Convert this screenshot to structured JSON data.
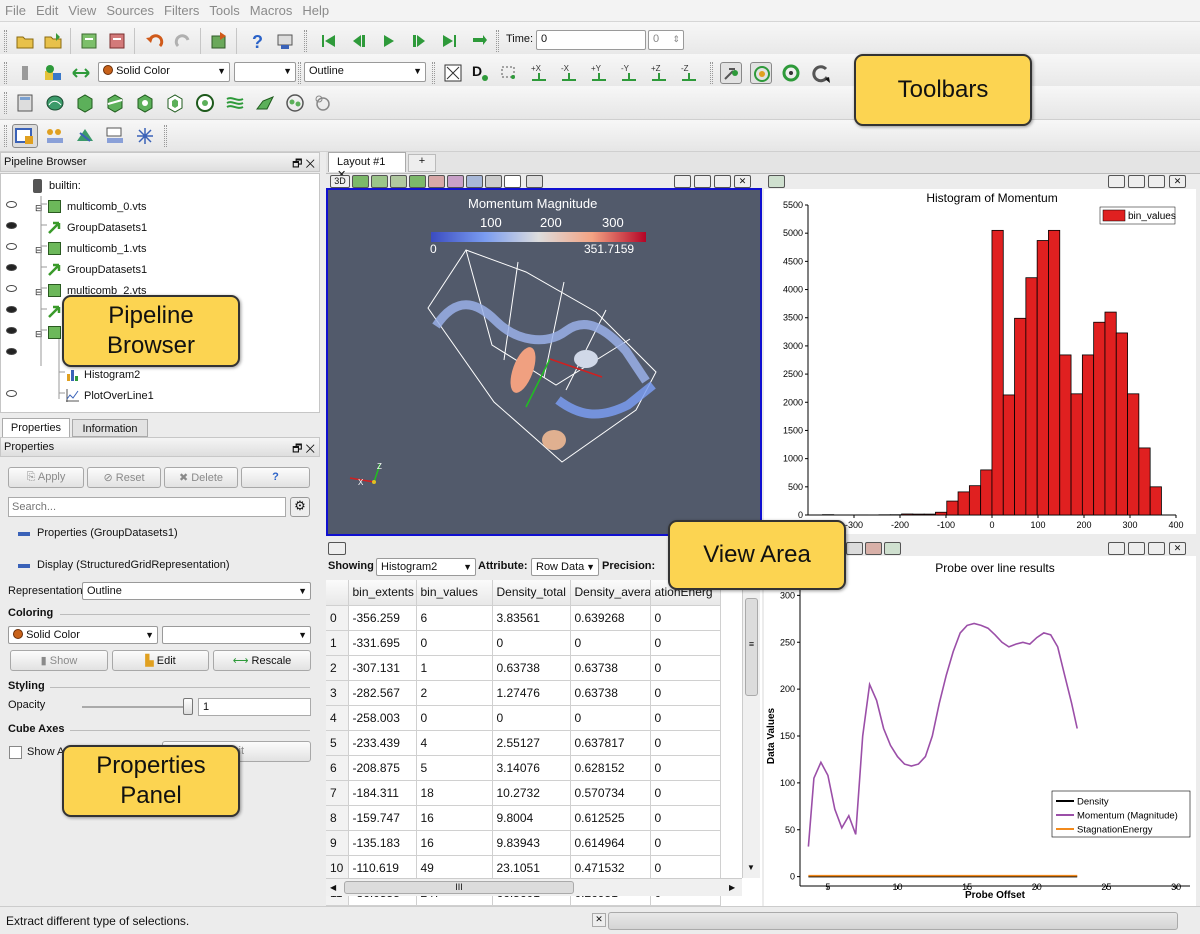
{
  "menu": [
    "File",
    "Edit",
    "View",
    "Sources",
    "Filters",
    "Tools",
    "Macros",
    "Help"
  ],
  "toolbar": {
    "time_label": "Time:",
    "time_value": "0",
    "time_index": "0",
    "color_mode": "Solid Color",
    "color_component": "",
    "representation": "Outline"
  },
  "callouts": {
    "toolbars": "Toolbars",
    "pipeline_l1": "Pipeline",
    "pipeline_l2": "Browser",
    "view_area": "View Area",
    "props_l1": "Properties",
    "props_l2": "Panel"
  },
  "pipeline": {
    "title": "Pipeline Browser",
    "items": [
      {
        "label": "builtin:"
      },
      {
        "label": "multicomb_0.vts"
      },
      {
        "label": "GroupDatasets1"
      },
      {
        "label": "multicomb_1.vts"
      },
      {
        "label": "GroupDatasets1"
      },
      {
        "label": "multicomb_2.vts"
      },
      {
        "label": "Histogram2"
      },
      {
        "label": "PlotOverLine1"
      }
    ]
  },
  "tabs": {
    "properties": "Properties",
    "information": "Information"
  },
  "properties": {
    "title": "Properties",
    "apply": "Apply",
    "reset": "Reset",
    "delete": "Delete",
    "help": "?",
    "search_placeholder": "Search...",
    "group_label": "Properties (GroupDatasets1)",
    "display_label": "Display (StructuredGridRepresentation)",
    "representation_label": "Representation",
    "representation_value": "Outline",
    "coloring": "Coloring",
    "color_mode": "Solid Color",
    "show": "Show",
    "edit": "Edit",
    "rescale": "Rescale",
    "styling": "Styling",
    "opacity_label": "Opacity",
    "opacity_value": "1",
    "cube_axes": "Cube Axes",
    "show_axes": "Show A",
    "edit_axes": "it"
  },
  "layout": {
    "tab": "Layout #1",
    "add": "+",
    "btn3d": "3D"
  },
  "view3d": {
    "colorbar_title": "Momentum Magnitude",
    "ticks": [
      "100",
      "200",
      "300"
    ],
    "min": "0",
    "max": "351.7159",
    "axis_x": "X",
    "axis_z": "Z"
  },
  "spreadsheet": {
    "showing_label": "Showing",
    "showing_value": "Histogram2",
    "attribute_label": "Attribute:",
    "attribute_value": "Row Data",
    "precision_label": "Precision:",
    "columns": [
      "",
      "bin_extents",
      "bin_values",
      "Density_total",
      "Density_averag",
      "ationEnerg"
    ],
    "rows": [
      [
        "0",
        "-356.259",
        "6",
        "3.83561",
        "0.639268",
        "0"
      ],
      [
        "1",
        "-331.695",
        "0",
        "0",
        "0",
        "0"
      ],
      [
        "2",
        "-307.131",
        "1",
        "0.63738",
        "0.63738",
        "0"
      ],
      [
        "3",
        "-282.567",
        "2",
        "1.27476",
        "0.63738",
        "0"
      ],
      [
        "4",
        "-258.003",
        "0",
        "0",
        "0",
        "0"
      ],
      [
        "5",
        "-233.439",
        "4",
        "2.55127",
        "0.637817",
        "0"
      ],
      [
        "6",
        "-208.875",
        "5",
        "3.14076",
        "0.628152",
        "0"
      ],
      [
        "7",
        "-184.311",
        "18",
        "10.2732",
        "0.570734",
        "0"
      ],
      [
        "8",
        "-159.747",
        "16",
        "9.8004",
        "0.612525",
        "0"
      ],
      [
        "9",
        "-135.183",
        "16",
        "9.83943",
        "0.614964",
        "0"
      ],
      [
        "10",
        "-110.619",
        "49",
        "23.1051",
        "0.471532",
        "0"
      ],
      [
        "11",
        "-86.0555",
        "247",
        "66.5601",
        "0.26951",
        "0"
      ]
    ],
    "scroll_mark": "III"
  },
  "status": {
    "text": "Extract different type of selections."
  },
  "colors": {
    "selection_border": "#1010d0",
    "bar_fill": "#e02020",
    "view_bg": "#525a6b",
    "callout": "#fcd451"
  },
  "chart_data": [
    {
      "type": "bar",
      "title": "Histogram of Momentum",
      "legend": [
        "bin_values"
      ],
      "legend_position": "top-right",
      "xlim": [
        -400,
        400
      ],
      "ylim": [
        0,
        5500
      ],
      "xticks": [
        "-300",
        "-200",
        "-100",
        "0",
        "100",
        "200",
        "300",
        "400"
      ],
      "yticks": [
        "0",
        "500",
        "1000",
        "1500",
        "2000",
        "2500",
        "3000",
        "3500",
        "4000",
        "4500",
        "5000",
        "5500"
      ],
      "x": [
        -356.259,
        -331.695,
        -307.131,
        -282.567,
        -258.003,
        -233.439,
        -208.875,
        -184.311,
        -159.747,
        -135.183,
        -110.619,
        -86.0555,
        -61.49,
        -36.93,
        -12.37,
        12.2,
        36.76,
        61.32,
        85.89,
        110.45,
        135.01,
        159.58,
        184.14,
        208.71,
        233.27,
        257.84,
        282.4,
        306.96,
        331.53,
        356.09
      ],
      "values": [
        6,
        0,
        1,
        2,
        0,
        4,
        5,
        18,
        16,
        16,
        49,
        247,
        410,
        520,
        800,
        5050,
        2130,
        3490,
        4210,
        4870,
        5050,
        2840,
        2150,
        2840,
        3420,
        3600,
        3230,
        2150,
        1190,
        500
      ],
      "bin_width": 24.56
    },
    {
      "type": "line",
      "title": "Probe over line results",
      "xlabel": "Probe Offset",
      "ylabel": "Data Values",
      "xlim": [
        3,
        31
      ],
      "ylim": [
        -10,
        310
      ],
      "xticks": [
        "5",
        "10",
        "15",
        "20",
        "25",
        "30"
      ],
      "yticks": [
        "0",
        "50",
        "100",
        "150",
        "200",
        "250",
        "300"
      ],
      "legend_position": "bottom-right",
      "x": [
        3.6,
        4,
        4.5,
        5,
        5.5,
        6,
        6.5,
        7,
        7.5,
        8,
        8.5,
        9,
        9.5,
        10,
        10.5,
        11,
        11.5,
        12,
        12.5,
        13,
        13.5,
        14,
        14.5,
        15,
        15.5,
        16,
        16.5,
        17,
        17.5,
        18,
        18.5,
        19,
        19.5,
        20,
        20.5,
        21,
        21.5,
        22,
        22.5,
        22.9
      ],
      "series": [
        {
          "name": "Density",
          "color": "#000000",
          "values": [
            0,
            0,
            0,
            0,
            0,
            0,
            0,
            0,
            0,
            0,
            0,
            0,
            0,
            0,
            0,
            0,
            0,
            0,
            0,
            0,
            0,
            0,
            0,
            0,
            0,
            0,
            0,
            0,
            0,
            0,
            0,
            0,
            0,
            0,
            0,
            0,
            0,
            0,
            0,
            0
          ]
        },
        {
          "name": "Momentum (Magnitude)",
          "color": "#9b4fa8",
          "values": [
            32,
            105,
            122,
            108,
            72,
            52,
            65,
            45,
            150,
            205,
            188,
            158,
            140,
            128,
            120,
            118,
            120,
            128,
            150,
            185,
            215,
            240,
            260,
            268,
            270,
            268,
            265,
            258,
            250,
            245,
            248,
            250,
            248,
            255,
            260,
            258,
            245,
            215,
            185,
            158
          ]
        },
        {
          "name": "StagnationEnergy",
          "color": "#f28a1c",
          "values": [
            1,
            1,
            1,
            1,
            1,
            1,
            1,
            1,
            1,
            1,
            1,
            1,
            1,
            1,
            1,
            1,
            1,
            1,
            1,
            1,
            1,
            1,
            1,
            1,
            1,
            1,
            1,
            1,
            1,
            1,
            1,
            1,
            1,
            1,
            1,
            1,
            1,
            1,
            1,
            1
          ]
        }
      ]
    }
  ]
}
